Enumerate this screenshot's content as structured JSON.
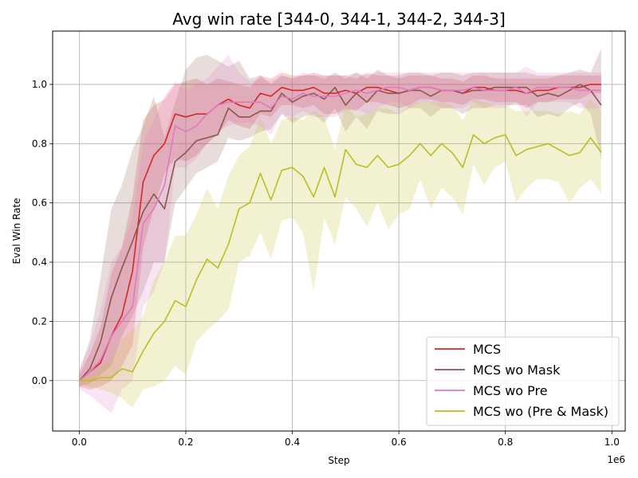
{
  "chart_data": {
    "type": "line",
    "title": "Avg win rate [344-0, 344-1, 344-2, 344-3]",
    "xlabel": "Step",
    "ylabel": "Eval Win Rate",
    "x_offset_label": "1e6",
    "xlim": [
      -0.05,
      1.025
    ],
    "ylim": [
      -0.17,
      1.18
    ],
    "x_ticks": [
      0.0,
      0.2,
      0.4,
      0.6,
      0.8,
      1.0
    ],
    "x_tick_labels": [
      "0.0",
      "0.2",
      "0.4",
      "0.6",
      "0.8",
      "1.0"
    ],
    "y_ticks": [
      0.0,
      0.2,
      0.4,
      0.6,
      0.8,
      1.0
    ],
    "y_tick_labels": [
      "0.0",
      "0.2",
      "0.4",
      "0.6",
      "0.8",
      "1.0"
    ],
    "grid": true,
    "legend_position": "bottom-right",
    "x": [
      0.0,
      0.02,
      0.04,
      0.06,
      0.08,
      0.1,
      0.12,
      0.14,
      0.16,
      0.18,
      0.2,
      0.22,
      0.24,
      0.26,
      0.28,
      0.3,
      0.32,
      0.34,
      0.36,
      0.38,
      0.4,
      0.42,
      0.44,
      0.46,
      0.48,
      0.5,
      0.52,
      0.54,
      0.56,
      0.58,
      0.6,
      0.62,
      0.64,
      0.66,
      0.68,
      0.7,
      0.72,
      0.74,
      0.76,
      0.78,
      0.8,
      0.82,
      0.84,
      0.86,
      0.88,
      0.9,
      0.92,
      0.94,
      0.96,
      0.98
    ],
    "series": [
      {
        "name": "MCS",
        "color": "#d62728",
        "values": [
          0.0,
          0.03,
          0.06,
          0.15,
          0.22,
          0.37,
          0.67,
          0.76,
          0.8,
          0.9,
          0.89,
          0.9,
          0.9,
          0.93,
          0.95,
          0.93,
          0.92,
          0.97,
          0.96,
          0.99,
          0.98,
          0.98,
          0.99,
          0.97,
          0.97,
          0.98,
          0.97,
          0.99,
          0.99,
          0.98,
          0.97,
          0.98,
          0.99,
          0.99,
          0.98,
          0.98,
          0.97,
          0.99,
          0.99,
          0.98,
          0.98,
          0.98,
          0.97,
          0.98,
          0.98,
          0.99,
          0.99,
          0.99,
          1.0,
          1.0
        ],
        "lower": [
          -0.02,
          -0.03,
          -0.02,
          0.0,
          0.05,
          0.12,
          0.45,
          0.58,
          0.7,
          0.75,
          0.74,
          0.76,
          0.8,
          0.83,
          0.88,
          0.86,
          0.85,
          0.9,
          0.89,
          0.93,
          0.93,
          0.92,
          0.93,
          0.9,
          0.9,
          0.92,
          0.91,
          0.94,
          0.94,
          0.93,
          0.92,
          0.93,
          0.95,
          0.95,
          0.94,
          0.94,
          0.93,
          0.95,
          0.95,
          0.94,
          0.94,
          0.94,
          0.92,
          0.94,
          0.94,
          0.95,
          0.95,
          0.95,
          0.97,
          0.97
        ],
        "upper": [
          0.02,
          0.09,
          0.18,
          0.36,
          0.45,
          0.62,
          0.88,
          0.93,
          0.95,
          1.0,
          1.01,
          1.02,
          1.0,
          1.02,
          1.01,
          1.0,
          0.99,
          1.03,
          1.02,
          1.04,
          1.03,
          1.03,
          1.04,
          1.03,
          1.03,
          1.03,
          1.02,
          1.04,
          1.03,
          1.03,
          1.02,
          1.03,
          1.03,
          1.03,
          1.02,
          1.02,
          1.01,
          1.03,
          1.03,
          1.02,
          1.02,
          1.02,
          1.02,
          1.02,
          1.02,
          1.03,
          1.03,
          1.03,
          1.03,
          1.03
        ]
      },
      {
        "name": "MCS wo Mask",
        "color": "#8c564b",
        "values": [
          0.0,
          0.04,
          0.13,
          0.28,
          0.38,
          0.47,
          0.57,
          0.63,
          0.58,
          0.74,
          0.77,
          0.81,
          0.82,
          0.83,
          0.92,
          0.89,
          0.89,
          0.91,
          0.91,
          0.97,
          0.94,
          0.96,
          0.97,
          0.95,
          0.99,
          0.93,
          0.97,
          0.94,
          0.98,
          0.97,
          0.97,
          0.98,
          0.98,
          0.96,
          0.98,
          0.98,
          0.97,
          0.98,
          0.98,
          0.99,
          0.99,
          0.99,
          0.99,
          0.96,
          0.97,
          0.96,
          0.98,
          1.0,
          0.98,
          0.93
        ],
        "lower": [
          -0.02,
          -0.01,
          0.02,
          0.05,
          0.15,
          0.22,
          0.3,
          0.4,
          0.4,
          0.6,
          0.65,
          0.7,
          0.72,
          0.74,
          0.82,
          0.81,
          0.82,
          0.84,
          0.85,
          0.9,
          0.87,
          0.89,
          0.9,
          0.87,
          0.92,
          0.84,
          0.89,
          0.85,
          0.91,
          0.9,
          0.9,
          0.92,
          0.92,
          0.89,
          0.92,
          0.92,
          0.9,
          0.92,
          0.92,
          0.93,
          0.93,
          0.93,
          0.93,
          0.89,
          0.9,
          0.89,
          0.92,
          0.94,
          0.9,
          0.75
        ],
        "upper": [
          0.03,
          0.14,
          0.35,
          0.58,
          0.66,
          0.78,
          0.86,
          0.96,
          0.82,
          0.94,
          1.05,
          1.09,
          1.1,
          1.08,
          1.06,
          1.08,
          1.02,
          1.03,
          1.0,
          1.03,
          1.02,
          1.03,
          1.03,
          1.02,
          1.04,
          1.02,
          1.04,
          1.02,
          1.05,
          1.03,
          1.03,
          1.04,
          1.04,
          1.03,
          1.04,
          1.04,
          1.03,
          1.04,
          1.04,
          1.04,
          1.04,
          1.04,
          1.04,
          1.03,
          1.03,
          1.03,
          1.04,
          1.05,
          1.04,
          1.12
        ]
      },
      {
        "name": "MCS wo Pre",
        "color": "#e377c2",
        "values": [
          0.0,
          0.03,
          0.07,
          0.15,
          0.2,
          0.25,
          0.53,
          0.58,
          0.66,
          0.86,
          0.84,
          0.86,
          0.9,
          0.93,
          0.94,
          0.94,
          0.94,
          0.94,
          0.92,
          0.96,
          0.95,
          0.97,
          0.96,
          0.96,
          0.96,
          0.97,
          0.98,
          0.97,
          0.98,
          0.99,
          0.99,
          0.98,
          0.99,
          0.99,
          0.98,
          0.98,
          0.98,
          0.99,
          0.98,
          0.98,
          0.98,
          0.99,
          0.97,
          0.99,
          0.99,
          0.99,
          0.99,
          0.98,
          0.98,
          0.98
        ],
        "lower": [
          -0.03,
          -0.05,
          -0.08,
          -0.11,
          -0.03,
          0.0,
          0.25,
          0.3,
          0.4,
          0.72,
          0.72,
          0.75,
          0.8,
          0.84,
          0.86,
          0.87,
          0.87,
          0.86,
          0.83,
          0.9,
          0.89,
          0.91,
          0.89,
          0.89,
          0.89,
          0.91,
          0.92,
          0.9,
          0.92,
          0.94,
          0.94,
          0.92,
          0.94,
          0.94,
          0.92,
          0.92,
          0.92,
          0.94,
          0.92,
          0.92,
          0.92,
          0.94,
          0.89,
          0.94,
          0.94,
          0.94,
          0.94,
          0.92,
          0.92,
          0.92
        ],
        "upper": [
          0.04,
          0.12,
          0.24,
          0.4,
          0.45,
          0.55,
          0.8,
          0.88,
          0.96,
          1.01,
          0.98,
          1.0,
          1.02,
          1.06,
          1.1,
          1.04,
          1.01,
          1.02,
          1.01,
          1.03,
          1.02,
          1.04,
          1.03,
          1.03,
          1.03,
          1.03,
          1.04,
          1.03,
          1.04,
          1.04,
          1.04,
          1.04,
          1.04,
          1.04,
          1.04,
          1.04,
          1.04,
          1.04,
          1.04,
          1.04,
          1.04,
          1.04,
          1.06,
          1.04,
          1.04,
          1.04,
          1.04,
          1.04,
          1.04,
          1.04
        ]
      },
      {
        "name": "MCS wo (Pre & Mask)",
        "color": "#bcbd22",
        "values": [
          0.0,
          0.0,
          0.01,
          0.01,
          0.04,
          0.03,
          0.1,
          0.16,
          0.2,
          0.27,
          0.25,
          0.34,
          0.41,
          0.38,
          0.46,
          0.58,
          0.6,
          0.7,
          0.61,
          0.71,
          0.72,
          0.69,
          0.62,
          0.72,
          0.62,
          0.78,
          0.73,
          0.72,
          0.76,
          0.72,
          0.73,
          0.76,
          0.8,
          0.76,
          0.8,
          0.77,
          0.72,
          0.83,
          0.8,
          0.82,
          0.83,
          0.76,
          0.78,
          0.79,
          0.8,
          0.78,
          0.76,
          0.77,
          0.82,
          0.77
        ],
        "lower": [
          -0.01,
          -0.02,
          -0.03,
          -0.04,
          -0.06,
          -0.09,
          -0.03,
          -0.02,
          0.0,
          0.05,
          0.02,
          0.13,
          0.17,
          0.2,
          0.24,
          0.4,
          0.42,
          0.5,
          0.41,
          0.54,
          0.55,
          0.5,
          0.3,
          0.55,
          0.46,
          0.62,
          0.58,
          0.52,
          0.6,
          0.51,
          0.56,
          0.58,
          0.68,
          0.58,
          0.65,
          0.62,
          0.56,
          0.73,
          0.66,
          0.72,
          0.74,
          0.6,
          0.65,
          0.68,
          0.68,
          0.67,
          0.6,
          0.65,
          0.68,
          0.63
        ],
        "upper": [
          0.01,
          0.02,
          0.05,
          0.07,
          0.14,
          0.17,
          0.22,
          0.34,
          0.4,
          0.49,
          0.49,
          0.56,
          0.65,
          0.58,
          0.69,
          0.76,
          0.79,
          0.89,
          0.8,
          0.88,
          0.89,
          0.88,
          0.91,
          0.89,
          0.78,
          0.93,
          0.89,
          0.9,
          0.92,
          0.92,
          0.9,
          0.93,
          0.94,
          0.94,
          0.94,
          0.93,
          0.88,
          0.95,
          0.94,
          0.93,
          0.93,
          0.91,
          0.91,
          0.91,
          0.91,
          0.9,
          0.91,
          0.9,
          0.95,
          0.91
        ]
      }
    ]
  }
}
